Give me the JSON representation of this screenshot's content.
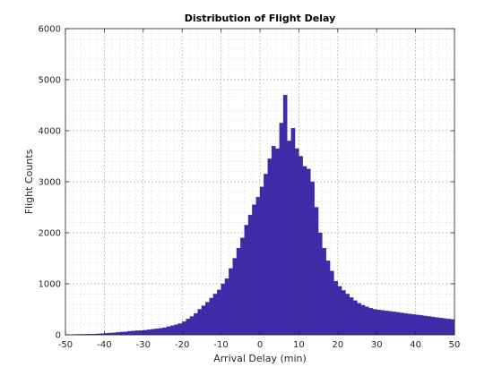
{
  "chart_data": {
    "type": "bar",
    "title": "Distribution of Flight Delay",
    "xlabel": "Arrival Delay (min)",
    "ylabel": "Flight Counts",
    "xlim": [
      -50,
      50
    ],
    "ylim": [
      0,
      6000
    ],
    "xticks": [
      -50,
      -40,
      -30,
      -20,
      -10,
      0,
      10,
      20,
      30,
      40,
      50
    ],
    "yticks": [
      0,
      1000,
      2000,
      3000,
      4000,
      5000,
      6000
    ],
    "grid": true,
    "minor_grid": true,
    "bin_width": 1,
    "bin_start": -50,
    "bar_color": "#3f2aa8",
    "values": [
      5,
      6,
      8,
      10,
      10,
      12,
      14,
      16,
      20,
      25,
      30,
      35,
      40,
      48,
      55,
      60,
      70,
      75,
      80,
      85,
      90,
      100,
      110,
      120,
      130,
      140,
      160,
      180,
      200,
      220,
      260,
      310,
      360,
      420,
      500,
      570,
      640,
      720,
      800,
      880,
      1000,
      1100,
      1300,
      1500,
      1700,
      1900,
      2150,
      2350,
      2550,
      2700,
      2900,
      3150,
      3450,
      3700,
      3650,
      4150,
      4700,
      3800,
      4050,
      3650,
      3500,
      3300,
      3250,
      3000,
      2500,
      2000,
      1700,
      1450,
      1250,
      1050,
      950,
      870,
      800,
      730,
      670,
      620,
      580,
      550,
      520,
      500,
      490,
      480,
      470,
      460,
      450,
      440,
      430,
      420,
      410,
      400,
      390,
      380,
      370,
      360,
      350,
      340,
      330,
      320,
      310,
      300
    ]
  }
}
